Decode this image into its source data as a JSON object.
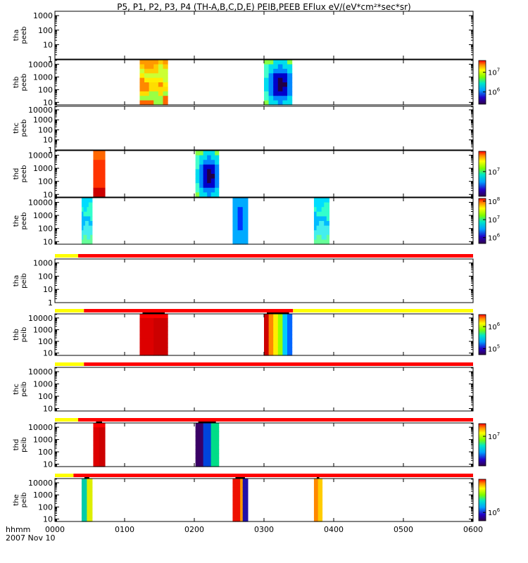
{
  "title": "P5, P1, P2, P3, P4 (TH-A,B,C,D,E) PEIB,PEEB EFlux eV/(eV*cm²*sec*sr)",
  "footer": {
    "xlabel": "hhmm",
    "date": "2007 Nov 10"
  },
  "chart_data": {
    "type": "heatmap",
    "x_ticks": [
      "0000",
      "0100",
      "0200",
      "0300",
      "0400",
      "0500",
      "0600"
    ],
    "x_range_hours": [
      0,
      6
    ],
    "y_scale": "log",
    "colorscale": "rainbow (purple-blue-cyan-green-yellow-red)",
    "panels": [
      {
        "ylabel_probe": "tha",
        "ylabel_species": "peeb",
        "yticks": [
          "1000",
          "100",
          "10",
          "1"
        ],
        "ylog_range": [
          0,
          3.3
        ],
        "blocks": []
      },
      {
        "ylabel_probe": "thb",
        "ylabel_species": "peeb",
        "yticks": [
          "10000",
          "1000",
          "100",
          "10"
        ],
        "ylog_range": [
          0.8,
          4.35
        ],
        "colorbar": {
          "labels": [
            {
              "text": "10",
              "exp": "7",
              "pos": 0.27
            },
            {
              "text": "10",
              "exp": "6",
              "pos": 0.72
            }
          ]
        },
        "blocks": [
          {
            "start": "01:13",
            "end": "01:37",
            "palette": "warm"
          },
          {
            "start": "03:00",
            "end": "03:24",
            "palette": "cool-dark"
          }
        ]
      },
      {
        "ylabel_probe": "thc",
        "ylabel_species": "peeb",
        "yticks": [
          "10000",
          "1000",
          "100",
          "10",
          "1"
        ],
        "ylog_range": [
          0,
          4.35
        ],
        "blocks": []
      },
      {
        "ylabel_probe": "thd",
        "ylabel_species": "peeb",
        "yticks": [
          "10000",
          "1000",
          "100",
          "10"
        ],
        "ylog_range": [
          0.8,
          4.35
        ],
        "colorbar": {
          "labels": [
            {
              "text": "10",
              "exp": "7",
              "pos": 0.45
            }
          ]
        },
        "blocks": [
          {
            "start": "00:33",
            "end": "00:43",
            "palette": "red"
          },
          {
            "start": "02:01",
            "end": "02:21",
            "palette": "cool-dark"
          }
        ]
      },
      {
        "ylabel_probe": "the",
        "ylabel_species": "peeb",
        "yticks": [
          "10000",
          "1000",
          "100",
          "10"
        ],
        "ylog_range": [
          0.8,
          4.35
        ],
        "colorbar": {
          "labels": [
            {
              "text": "10",
              "exp": "8",
              "pos": 0.06
            },
            {
              "text": "10",
              "exp": "7",
              "pos": 0.47
            },
            {
              "text": "10",
              "exp": "6",
              "pos": 0.87
            }
          ]
        },
        "blocks": [
          {
            "start": "00:23",
            "end": "00:32",
            "palette": "cyan"
          },
          {
            "start": "02:33",
            "end": "02:46",
            "palette": "cyan-blue"
          },
          {
            "start": "03:43",
            "end": "03:56",
            "palette": "cyan"
          }
        ]
      },
      {
        "ylabel_probe": "tha",
        "ylabel_species": "peib",
        "yticks": [
          "1000",
          "100",
          "10",
          "1"
        ],
        "ylog_range": [
          0,
          3.3
        ],
        "bar": [
          {
            "start": "00:00",
            "end": "00:20",
            "color": "#ffff00"
          },
          {
            "start": "00:20",
            "end": "06:00",
            "color": "#ff0000"
          }
        ],
        "blocks": []
      },
      {
        "ylabel_probe": "thb",
        "ylabel_species": "peib",
        "yticks": [
          "10000",
          "1000",
          "100",
          "10"
        ],
        "ylog_range": [
          0.8,
          4.35
        ],
        "colorbar": {
          "labels": [
            {
              "text": "10",
              "exp": "6",
              "pos": 0.3
            },
            {
              "text": "10",
              "exp": "5",
              "pos": 0.85
            }
          ]
        },
        "bar": [
          {
            "start": "00:00",
            "end": "00:25",
            "color": "#ffff00"
          },
          {
            "start": "00:25",
            "end": "03:25",
            "color": "#ff0000"
          },
          {
            "start": "03:25",
            "end": "06:00",
            "color": "#ffff00"
          }
        ],
        "blocks": [
          {
            "start": "01:13",
            "end": "01:37",
            "palette": "deep-red"
          },
          {
            "start": "03:00",
            "end": "03:24",
            "palette": "gradient"
          }
        ]
      },
      {
        "ylabel_probe": "thc",
        "ylabel_species": "peib",
        "yticks": [
          "10000",
          "1000",
          "100",
          "10"
        ],
        "ylog_range": [
          0.8,
          4.35
        ],
        "bar": [
          {
            "start": "00:00",
            "end": "00:25",
            "color": "#ffff00"
          },
          {
            "start": "00:25",
            "end": "06:00",
            "color": "#ff0000"
          }
        ],
        "blocks": []
      },
      {
        "ylabel_probe": "thd",
        "ylabel_species": "peib",
        "yticks": [
          "10000",
          "1000",
          "100",
          "10"
        ],
        "ylog_range": [
          0.8,
          4.35
        ],
        "colorbar": {
          "labels": [
            {
              "text": "10",
              "exp": "7",
              "pos": 0.3
            }
          ]
        },
        "bar": [
          {
            "start": "00:00",
            "end": "00:20",
            "color": "#ffff00"
          },
          {
            "start": "00:20",
            "end": "06:00",
            "color": "#ff0000"
          }
        ],
        "blocks": [
          {
            "start": "00:33",
            "end": "00:43",
            "palette": "deep-red"
          },
          {
            "start": "02:01",
            "end": "02:21",
            "palette": "purple-green"
          }
        ]
      },
      {
        "ylabel_probe": "the",
        "ylabel_species": "peib",
        "yticks": [
          "10000",
          "1000",
          "100",
          "10"
        ],
        "ylog_range": [
          0.8,
          4.35
        ],
        "colorbar": {
          "labels": [
            {
              "text": "10",
              "exp": "6",
              "pos": 0.8
            }
          ]
        },
        "bar": [
          {
            "start": "00:00",
            "end": "00:16",
            "color": "#ffff00"
          },
          {
            "start": "00:16",
            "end": "06:00",
            "color": "#ff0000"
          }
        ],
        "blocks": [
          {
            "start": "00:23",
            "end": "00:32",
            "palette": "green-yellow"
          },
          {
            "start": "02:33",
            "end": "02:46",
            "palette": "red-purple"
          },
          {
            "start": "03:43",
            "end": "03:50",
            "palette": "orange"
          }
        ]
      }
    ]
  }
}
